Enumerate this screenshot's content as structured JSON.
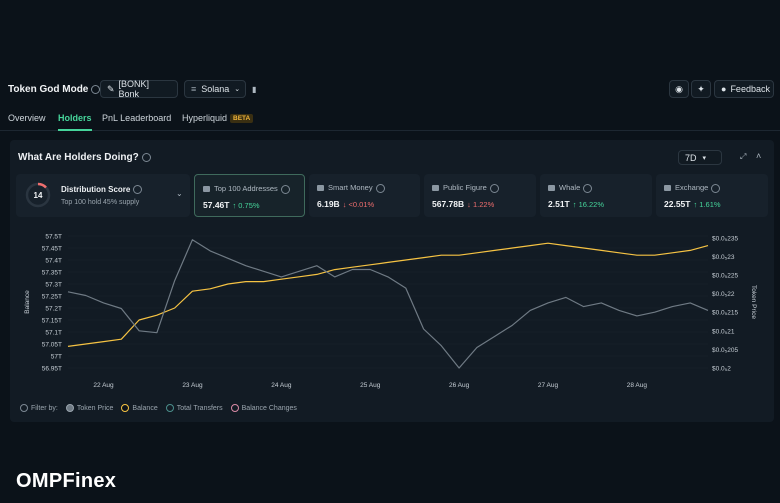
{
  "header": {
    "title": "Token God Mode",
    "token_selector": "[BONK] Bonk",
    "chain_selector": "Solana",
    "feedback_label": "Feedback"
  },
  "tabs": [
    {
      "label": "Overview"
    },
    {
      "label": "Holders",
      "active": true
    },
    {
      "label": "PnL Leaderboard"
    },
    {
      "label": "Hyperliquid",
      "badge": "BETA"
    }
  ],
  "panel": {
    "title": "What Are Holders Doing?",
    "period": "7D",
    "distribution": {
      "score": "14",
      "title": "Distribution Score",
      "subtitle": "Top 100 hold 45% supply"
    },
    "cards": [
      {
        "label": "Top 100 Addresses",
        "value": "57.46T",
        "change": "↑ 0.75%",
        "dir": "up",
        "icon": "list-icon"
      },
      {
        "label": "Smart Money",
        "value": "6.19B",
        "change": "↓ <0.01%",
        "dir": "down",
        "icon": "brain-icon"
      },
      {
        "label": "Public Figure",
        "value": "567.78B",
        "change": "↓ 1.22%",
        "dir": "down",
        "icon": "megaphone-icon"
      },
      {
        "label": "Whale",
        "value": "2.51T",
        "change": "↑ 16.22%",
        "dir": "up",
        "icon": "whale-icon"
      },
      {
        "label": "Exchange",
        "value": "22.55T",
        "change": "↑ 1.61%",
        "dir": "up",
        "icon": "bank-icon"
      }
    ],
    "legend": {
      "filter_label": "Filter by:",
      "items": [
        "Token Price",
        "Balance",
        "Total Transfers",
        "Balance Changes"
      ]
    }
  },
  "chart_data": {
    "type": "line",
    "xlabel": "",
    "ylabel": "Balance",
    "y2label": "Token Price",
    "x_ticks": [
      "22 Aug",
      "23 Aug",
      "24 Aug",
      "25 Aug",
      "26 Aug",
      "27 Aug",
      "28 Aug"
    ],
    "y_ticks": [
      "56.95T",
      "57T",
      "57.05T",
      "57.1T",
      "57.15T",
      "57.2T",
      "57.25T",
      "57.3T",
      "57.35T",
      "57.4T",
      "57.45T",
      "57.5T"
    ],
    "y2_ticks": [
      "$0.0₅2",
      "$0.0₅205",
      "$0.0₅21",
      "$0.0₅215",
      "$0.0₅22",
      "$0.0₅225",
      "$0.0₅23",
      "$0.0₅235"
    ],
    "ylim": [
      56.95,
      57.5
    ],
    "y2lim": [
      0.2,
      0.2355
    ],
    "x": [
      21.6,
      21.8,
      22.0,
      22.2,
      22.4,
      22.6,
      22.8,
      23.0,
      23.2,
      23.4,
      23.6,
      23.8,
      24.0,
      24.2,
      24.4,
      24.6,
      24.8,
      25.0,
      25.2,
      25.4,
      25.6,
      25.8,
      26.0,
      26.2,
      26.4,
      26.6,
      26.8,
      27.0,
      27.2,
      27.4,
      27.6,
      27.8,
      28.0,
      28.2,
      28.4,
      28.6,
      28.8
    ],
    "series": [
      {
        "name": "Balance",
        "color": "#f6c343",
        "axis": "left",
        "values": [
          57.04,
          57.05,
          57.06,
          57.07,
          57.15,
          57.17,
          57.2,
          57.27,
          57.28,
          57.3,
          57.31,
          57.31,
          57.32,
          57.33,
          57.34,
          57.36,
          57.37,
          57.38,
          57.39,
          57.4,
          57.41,
          57.42,
          57.42,
          57.43,
          57.44,
          57.45,
          57.46,
          57.47,
          57.46,
          57.45,
          57.44,
          57.43,
          57.42,
          57.42,
          57.43,
          57.44,
          57.46
        ]
      },
      {
        "name": "Token Price",
        "color": "#6f7a84",
        "axis": "right",
        "values": [
          0.2205,
          0.2195,
          0.2175,
          0.216,
          0.21,
          0.2095,
          0.2235,
          0.2345,
          0.2315,
          0.2295,
          0.2275,
          0.226,
          0.2245,
          0.226,
          0.2275,
          0.2245,
          0.2265,
          0.2265,
          0.2245,
          0.2215,
          0.2105,
          0.206,
          0.2,
          0.2055,
          0.2085,
          0.2115,
          0.2155,
          0.2175,
          0.219,
          0.2165,
          0.2175,
          0.2155,
          0.214,
          0.215,
          0.2165,
          0.2175,
          0.2155
        ]
      }
    ]
  },
  "watermark": "OMPFinex"
}
